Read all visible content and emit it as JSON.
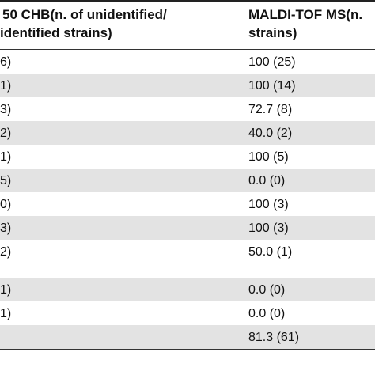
{
  "header": {
    "col_a_line1": "50 CHB(n. of unidentified/",
    "col_a_line2": "identified strains)",
    "col_b_line1": "MALDI-TOF MS(n.",
    "col_b_line2": "strains)"
  },
  "rows": [
    {
      "a": "6)",
      "b": "100 (25)"
    },
    {
      "a": "1)",
      "b": "100 (14)"
    },
    {
      "a": "3)",
      "b": "72.7 (8)"
    },
    {
      "a": "2)",
      "b": "40.0 (2)"
    },
    {
      "a": "1)",
      "b": "100 (5)"
    },
    {
      "a": "5)",
      "b": "0.0 (0)"
    },
    {
      "a": "0)",
      "b": "100 (3)"
    },
    {
      "a": "3)",
      "b": "100 (3)"
    },
    {
      "a": "2)",
      "b": "50.0 (1)"
    },
    {
      "a": "1)",
      "b": "0.0 (0)"
    },
    {
      "a": "1)",
      "b": "0.0 (0)"
    },
    {
      "a": "",
      "b": "81.3 (61)"
    }
  ]
}
